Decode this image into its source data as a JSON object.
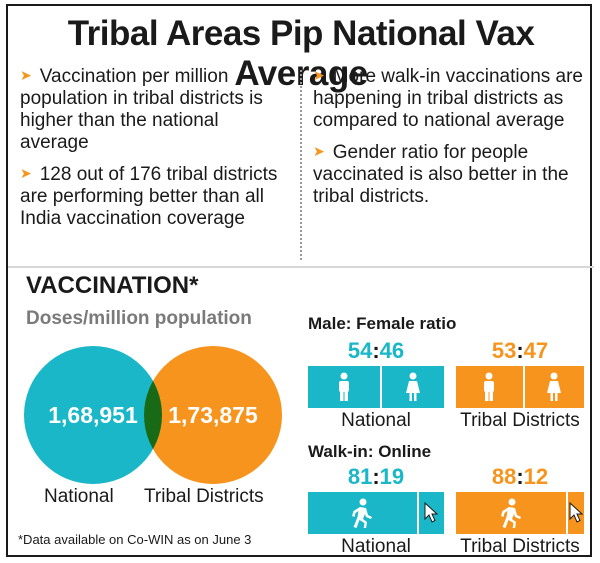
{
  "title": "Tribal Areas Pip National Vax Average",
  "bullets_left": [
    "Vaccination per million population in tribal districts is higher than the national average",
    "128 out of 176 tribal districts are performing better than all India vaccination coverage"
  ],
  "bullets_right": [
    "More walk-in vaccinations are happening in tribal districts as compared to national average",
    "Gender ratio for people vaccinated is also better in the tribal districts."
  ],
  "section_title": "VACCINATION*",
  "doses_label": "Doses/million population",
  "doses": {
    "national": {
      "value": "1,68,951",
      "label": "National"
    },
    "tribal": {
      "value": "1,73,875",
      "label": "Tribal Districts"
    }
  },
  "mf_heading": "Male: Female ratio",
  "mf": {
    "national": {
      "left": "54",
      "sep": ":",
      "right": "46",
      "label": "National",
      "male_share": 0.54
    },
    "tribal": {
      "left": "53",
      "sep": ":",
      "right": "47",
      "label": "Tribal Districts",
      "male_share": 0.53
    }
  },
  "wo_heading": "Walk-in: Online",
  "wo": {
    "national": {
      "left": "81",
      "sep": ":",
      "right": "19",
      "label": "National",
      "walkin_share": 0.81
    },
    "tribal": {
      "left": "88",
      "sep": ":",
      "right": "12",
      "label": "Tribal Districts",
      "walkin_share": 0.88
    }
  },
  "footnote": "*Data available on Co-WIN as on June 3",
  "colors": {
    "national": "#19b7c7",
    "tribal": "#f7941d"
  },
  "icons": [
    "arrow-bullet-icon",
    "male-icon",
    "female-icon",
    "walking-person-icon",
    "cursor-icon"
  ]
}
